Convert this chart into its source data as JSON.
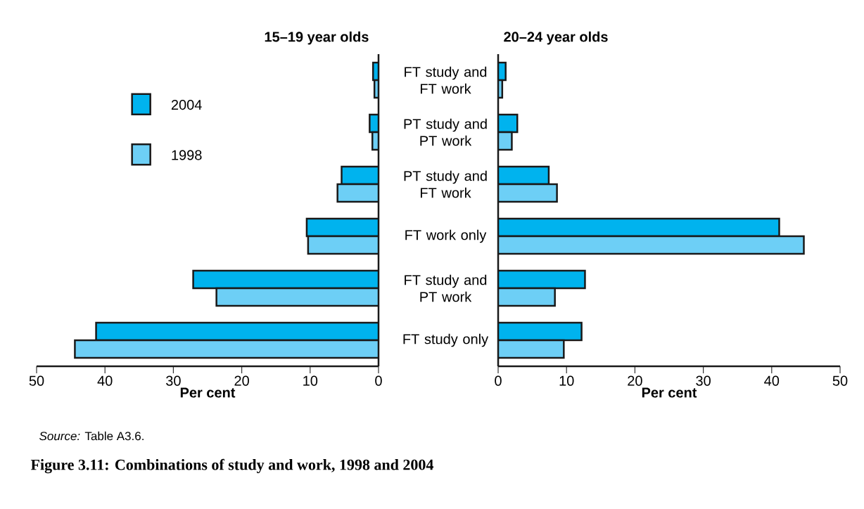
{
  "chart_data": [
    {
      "type": "bar",
      "orientation": "horizontal",
      "title": "15–19 year olds",
      "xlabel": "Per cent",
      "categories": [
        "FT study and FT work",
        "PT study and PT work",
        "PT study and FT work",
        "FT work only",
        "FT study and PT work",
        "FT study only"
      ],
      "series": [
        {
          "name": "2004",
          "color": "#00b3ee",
          "values": [
            0.8,
            1.3,
            5.4,
            10.5,
            27.1,
            41.3
          ]
        },
        {
          "name": "1998",
          "color": "#6dcff6",
          "values": [
            0.6,
            0.9,
            6.0,
            10.3,
            23.7,
            44.4
          ]
        }
      ],
      "xlim": [
        50,
        0
      ],
      "xticks": [
        0,
        10,
        20,
        30,
        40,
        50
      ],
      "legend": "top left",
      "annotations": [
        "*Source:* Table A3.6.",
        "Figure 3.11: Combinations of study and work, 1998 and 2004"
      ]
    },
    {
      "type": "bar",
      "orientation": "horizontal",
      "title": "20–24 year olds",
      "xlabel": "Per cent",
      "categories": [
        null,
        null,
        null,
        null,
        null,
        null
      ],
      "series": [
        {
          "color": "#00b3ee",
          "values": [
            1.1,
            2.8,
            7.4,
            41.1,
            12.7,
            12.2
          ]
        },
        {
          "color": "#6dcff6",
          "values": [
            0.6,
            2.0,
            8.6,
            44.7,
            8.3,
            9.6
          ]
        }
      ],
      "xlim": [
        0,
        50
      ],
      "xticks": [
        0,
        10,
        20,
        30,
        40,
        50
      ]
    }
  ]
}
